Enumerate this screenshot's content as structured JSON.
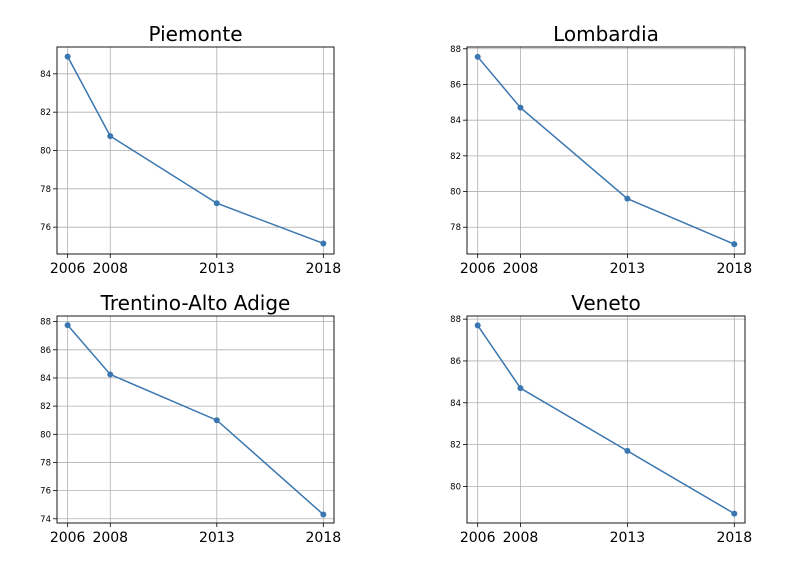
{
  "style": {
    "line_color": "#3a76af",
    "grid_color": "#b0b0b0",
    "background": "#ffffff"
  },
  "chart_data": [
    {
      "type": "line",
      "title": "Piemonte",
      "x": [
        2006,
        2008,
        2013,
        2018
      ],
      "xticks": [
        "2006",
        "2008",
        "2013",
        "2018"
      ],
      "values": [
        84.9,
        80.75,
        77.25,
        75.15
      ],
      "yticks": [
        76,
        78,
        80,
        82,
        84
      ],
      "ylim": [
        74.6,
        85.4
      ],
      "xlim": [
        2005.5,
        2018.5
      ],
      "grid": true
    },
    {
      "type": "line",
      "title": "Lombardia",
      "x": [
        2006,
        2008,
        2013,
        2018
      ],
      "xticks": [
        "2006",
        "2008",
        "2013",
        "2018"
      ],
      "values": [
        87.55,
        84.7,
        79.6,
        77.05
      ],
      "yticks": [
        78,
        80,
        82,
        84,
        86,
        88
      ],
      "ylim": [
        76.5,
        88.1
      ],
      "xlim": [
        2005.5,
        2018.5
      ],
      "grid": true
    },
    {
      "type": "line",
      "title": "Trentino-Alto Adige",
      "x": [
        2006,
        2008,
        2013,
        2018
      ],
      "xticks": [
        "2006",
        "2008",
        "2013",
        "2018"
      ],
      "values": [
        87.75,
        84.25,
        81.0,
        74.3
      ],
      "yticks": [
        74,
        76,
        78,
        80,
        82,
        84,
        86,
        88
      ],
      "ylim": [
        73.7,
        88.4
      ],
      "xlim": [
        2005.5,
        2018.5
      ],
      "grid": true
    },
    {
      "type": "line",
      "title": "Veneto",
      "x": [
        2006,
        2008,
        2013,
        2018
      ],
      "xticks": [
        "2006",
        "2008",
        "2013",
        "2018"
      ],
      "values": [
        87.7,
        84.7,
        81.7,
        78.7
      ],
      "yticks": [
        80,
        82,
        84,
        86,
        88
      ],
      "ylim": [
        78.25,
        88.15
      ],
      "xlim": [
        2005.5,
        2018.5
      ],
      "grid": true
    }
  ]
}
